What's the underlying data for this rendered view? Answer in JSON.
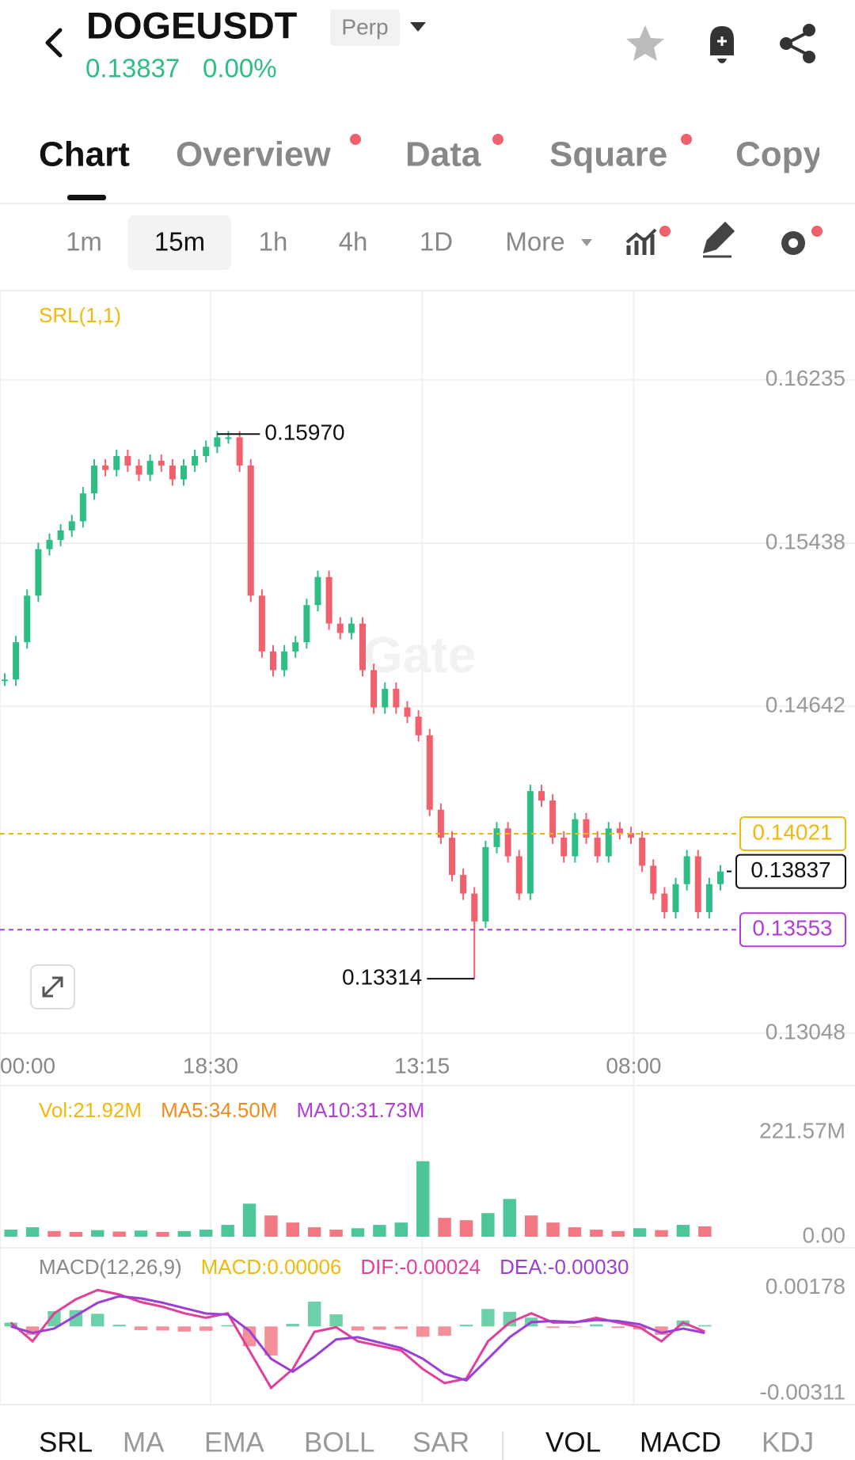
{
  "header": {
    "symbol": "DOGEUSDT",
    "badge": "Perp",
    "price": "0.13837",
    "change": "0.00%"
  },
  "tabs": [
    "Chart",
    "Overview",
    "Data",
    "Square",
    "Copy"
  ],
  "timeframes": [
    "1m",
    "15m",
    "1h",
    "4h",
    "1D",
    "More"
  ],
  "indicator_tabs": [
    "SRL",
    "MA",
    "EMA",
    "BOLL",
    "SAR",
    "VOL",
    "MACD",
    "KDJ"
  ],
  "chart_data": [
    {
      "type": "candlestick",
      "indicator": "SRL(1,1)",
      "watermark": "Gate",
      "values": [
        0.14773,
        0.14955,
        0.15182,
        0.15409,
        0.15454,
        0.155,
        0.15545,
        0.15681,
        0.15817,
        0.15795,
        0.15863,
        0.15817,
        0.15772,
        0.1584,
        0.15817,
        0.15749,
        0.15817,
        0.15863,
        0.15908,
        0.15954,
        0.15954,
        0.15817,
        0.15182,
        0.1491,
        0.14819,
        0.1491,
        0.14955,
        0.15136,
        0.15273,
        0.15046,
        0.15,
        0.15046,
        0.14819,
        0.14637,
        0.14728,
        0.14637,
        0.14592,
        0.14501,
        0.14138,
        0.14002,
        0.1382,
        0.13729,
        0.13593,
        0.13956,
        0.14047,
        0.13911,
        0.13729,
        0.14229,
        0.14183,
        0.14002,
        0.13911,
        0.14092,
        0.14002,
        0.13911,
        0.14047,
        0.14024,
        0.14002,
        0.13865,
        0.13729,
        0.13639,
        0.13775,
        0.13911,
        0.13639,
        0.13775,
        0.13837
      ],
      "up_color": "#2ebd85",
      "down_color": "#f0616d",
      "xlim": [
        0,
        64
      ],
      "xticks": [
        {
          "value": 0,
          "label": "00:00"
        },
        {
          "value": 18.83,
          "label": "18:30"
        },
        {
          "value": 37.75,
          "label": "13:15"
        },
        {
          "value": 56.67,
          "label": "08:00"
        }
      ],
      "ylim": [
        0.1299,
        0.1667
      ],
      "yticks": [
        0.16235,
        0.15438,
        0.14642,
        0.13048
      ],
      "high": {
        "value": 0.1597,
        "label": "0.15970"
      },
      "low": 0.13314,
      "levels": [
        {
          "value": 0.14021,
          "color": "#f0b90b"
        },
        {
          "value": 0.13553,
          "color": "#b13fd6"
        }
      ],
      "last": 0.13837
    },
    {
      "type": "bar",
      "legend": [
        {
          "text": "Vol:21.92M",
          "color": "#f0b90b"
        },
        {
          "text": "MA5:34.50M",
          "color": "#f08c1e"
        },
        {
          "text": "MA10:31.73M",
          "color": "#b13fd6"
        }
      ],
      "values": [
        15,
        20,
        12,
        10,
        14,
        11,
        13,
        10,
        12,
        15,
        25,
        70,
        45,
        30,
        20,
        15,
        18,
        25,
        30,
        160,
        40,
        35,
        50,
        80,
        45,
        30,
        20,
        15,
        12,
        18,
        14,
        25,
        21.92
      ],
      "up_color": "#2ebd85",
      "down_color": "#f0616d",
      "ylim": [
        0,
        312
      ],
      "yticks": [
        {
          "value": 0,
          "label": "0.00"
        },
        {
          "value": 221.57,
          "label": "221.57M"
        }
      ]
    },
    {
      "type": "macd",
      "legend": [
        {
          "text": "MACD(12,26,9)",
          "color": "#888888"
        },
        {
          "text": "MACD:0.00006",
          "color": "#f0b90b"
        },
        {
          "text": "DIF:-0.00024",
          "color": "#e0409a"
        },
        {
          "text": "DEA:-0.00030",
          "color": "#9b3fd6"
        }
      ],
      "values": [
        0.00018,
        -0.00039,
        0.00071,
        0.00076,
        0.00059,
        8e-05,
        -0.00017,
        -0.00019,
        -0.00024,
        -0.0002,
        6e-05,
        -0.00092,
        -0.00135,
        0.00012,
        0.00115,
        0.00056,
        -0.00019,
        -0.00015,
        -0.00012,
        -0.00048,
        -0.00043,
        8e-05,
        0.00081,
        0.00068,
        0.00041,
        -7e-05,
        -2e-05,
        0.0001,
        -7e-05,
        -0.00014,
        -0.00039,
        0.00028,
        6e-05
      ],
      "up_color": "#2ebd85",
      "down_color": "#f0616d",
      "series": [
        {
          "name": "DIF",
          "color": "#e0409a",
          "values": [
            0.00018,
            -0.00069,
            0.00061,
            0.00126,
            0.00169,
            0.00148,
            0.00113,
            0.00091,
            0.00061,
            0.0004,
            0.00061,
            -0.00112,
            -0.00285,
            -0.00198,
            -0.00025,
            -4e-05,
            -0.00069,
            -0.0009,
            -0.00112,
            -0.00198,
            -0.00263,
            -0.00242,
            -0.00069,
            0.00018,
            0.00061,
            0.00018,
            0.00018,
            0.0004,
            0.00018,
            -4e-05,
            -0.00069,
            0.00018,
            -0.00024
          ]
        },
        {
          "name": "DEA",
          "color": "#9b3fd6",
          "values": [
            0,
            -0.0003,
            -0.0001,
            0.0005,
            0.0011,
            0.0014,
            0.0013,
            0.0011,
            0.00085,
            0.0006,
            0.00055,
            -0.0002,
            -0.0015,
            -0.0021,
            -0.0014,
            -0.0006,
            -0.0005,
            -0.00075,
            -0.001,
            -0.0015,
            -0.0022,
            -0.0025,
            -0.0015,
            -0.0005,
            0.0002,
            0.00025,
            0.0002,
            0.0003,
            0.00025,
            0.0001,
            -0.0003,
            -0.0001,
            -0.0003
          ]
        }
      ],
      "ylim": [
        -0.00355,
        0.0035
      ],
      "yticks": [
        0.00178,
        -0.00311
      ]
    }
  ]
}
